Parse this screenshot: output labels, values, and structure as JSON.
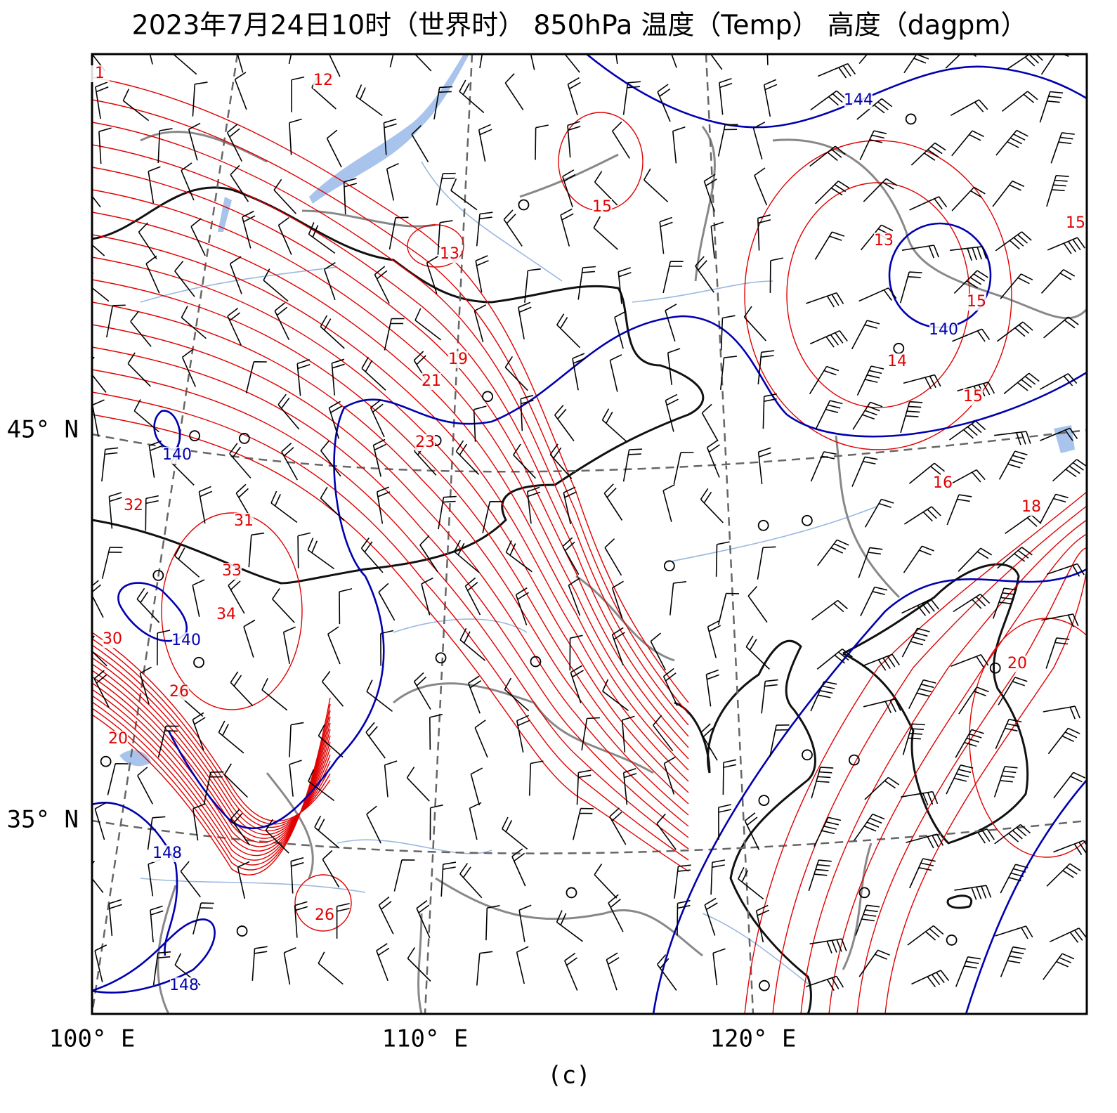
{
  "map": {
    "title": "2023年7月24日10时（世界时） 850hPa 温度（Temp） 高度（dagpm）",
    "caption": "(c)",
    "lon_labels": [
      "100° E",
      "110° E",
      "120° E"
    ],
    "lat_labels": [
      "45° N",
      "35° N"
    ],
    "temperature_labels": [
      "1",
      "12",
      "15",
      "13",
      "13",
      "15",
      "15",
      "14",
      "15",
      "19",
      "21",
      "23",
      "16",
      "18",
      "32",
      "31",
      "33",
      "34",
      "30",
      "26",
      "20",
      "20",
      "26"
    ],
    "height_labels": [
      "144",
      "140",
      "140",
      "140",
      "148",
      "148"
    ]
  }
}
